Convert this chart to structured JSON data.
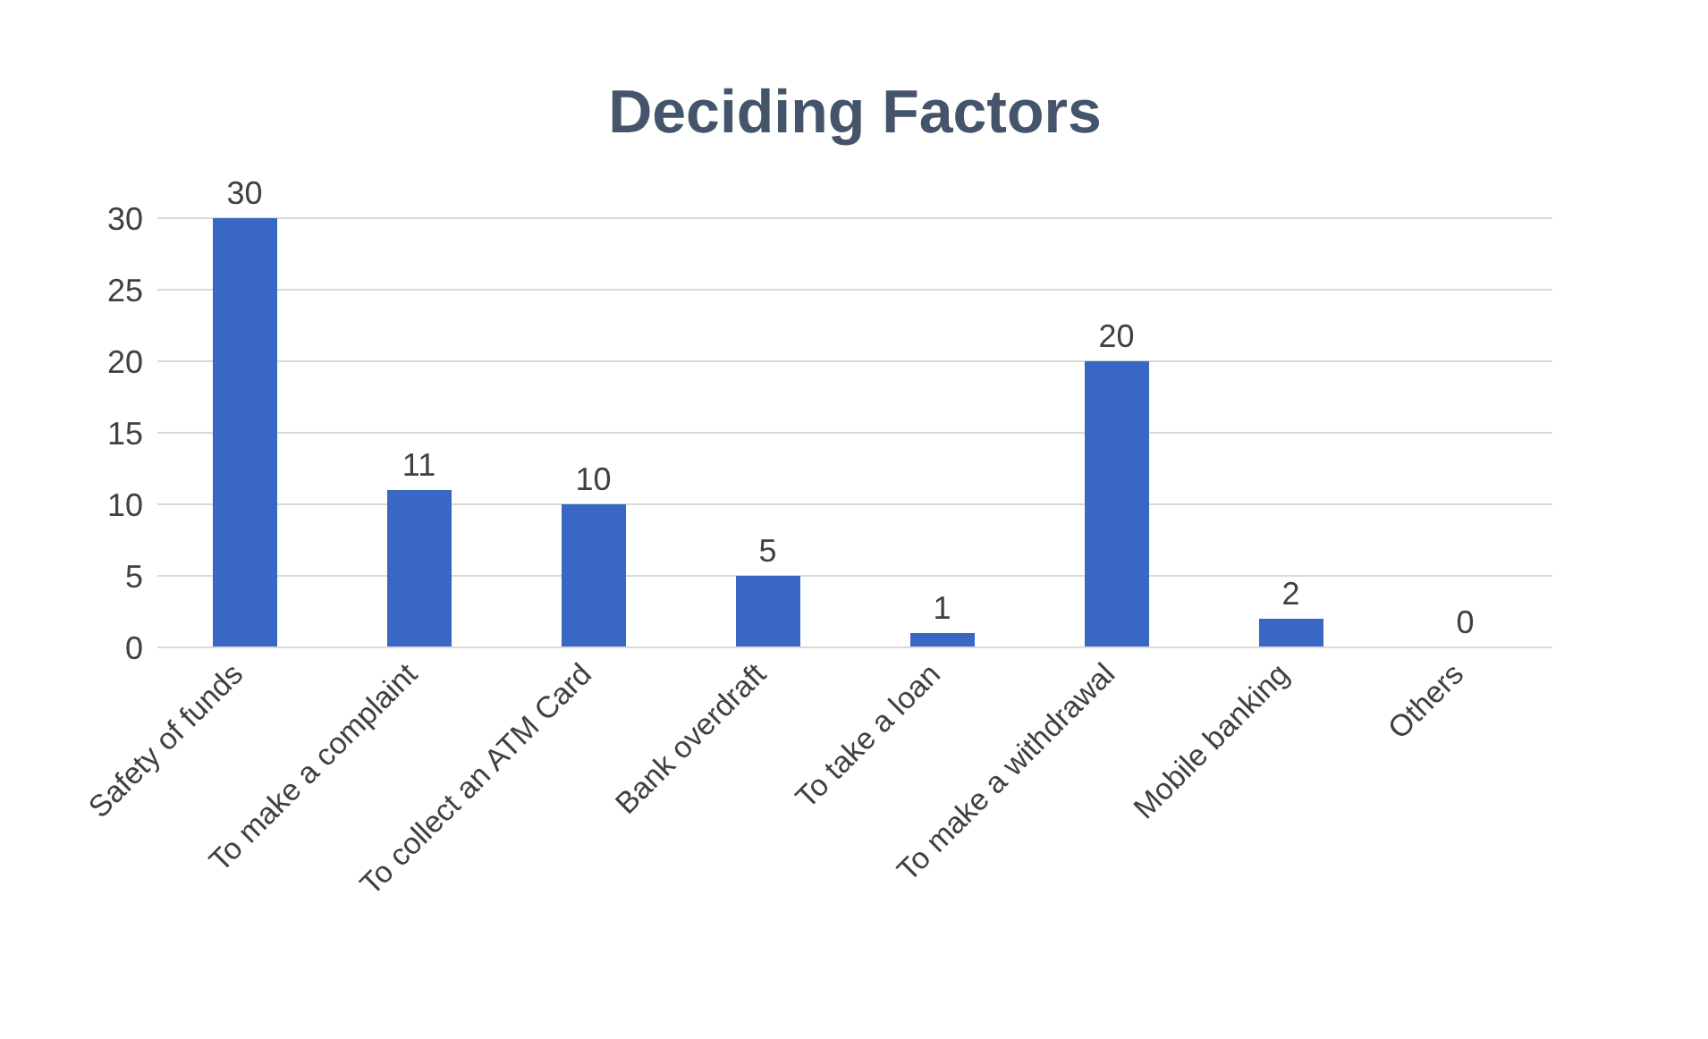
{
  "chart_data": {
    "type": "bar",
    "title": "Deciding Factors",
    "categories": [
      "Safety of funds",
      "To make a complaint",
      "To collect an ATM Card",
      "Bank overdraft",
      "To take a loan",
      "To make a withdrawal",
      "Mobile banking",
      "Others"
    ],
    "values": [
      30,
      11,
      10,
      5,
      1,
      20,
      2,
      0
    ],
    "color": "#3a66c4",
    "ylim": [
      0,
      30
    ],
    "yticks": [
      0,
      5,
      10,
      15,
      20,
      25,
      30
    ],
    "grid": "y",
    "data_labels": true
  }
}
